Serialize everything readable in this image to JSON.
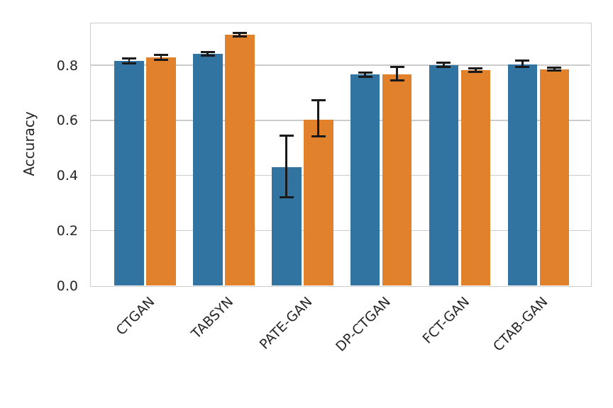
{
  "colors": {
    "background": "#ffffff",
    "grid": "#cccccc",
    "spine": "#cccccc",
    "text": "#262626",
    "errorbar": "#1a1a1a",
    "series_blue": "#3274a1",
    "series_orange": "#e1812c"
  },
  "chart_data": {
    "type": "bar",
    "title": "",
    "xlabel": "",
    "ylabel": "Accuracy",
    "grid": true,
    "legend": null,
    "ylim": [
      0,
      0.952
    ],
    "yticks": [
      0.0,
      0.2,
      0.4,
      0.6,
      0.8
    ],
    "yticklabels": [
      "0.0",
      "0.2",
      "0.4",
      "0.6",
      "0.8"
    ],
    "categories": [
      "CTGAN",
      "TABSYN",
      "PATE-GAN",
      "DP-CTGAN",
      "FCT-GAN",
      "CTAB-GAN"
    ],
    "series": [
      {
        "name": "blue",
        "color": "#3274a1",
        "values": [
          0.815,
          0.841,
          0.43,
          0.766,
          0.801,
          0.803
        ],
        "err_lo": [
          0.806,
          0.835,
          0.32,
          0.759,
          0.793,
          0.793
        ],
        "err_hi": [
          0.825,
          0.848,
          0.545,
          0.774,
          0.81,
          0.816
        ]
      },
      {
        "name": "orange",
        "color": "#e1812c",
        "values": [
          0.828,
          0.91,
          0.602,
          0.767,
          0.783,
          0.785
        ],
        "err_lo": [
          0.819,
          0.904,
          0.542,
          0.745,
          0.777,
          0.78
        ],
        "err_hi": [
          0.838,
          0.916,
          0.672,
          0.795,
          0.789,
          0.791
        ]
      }
    ]
  }
}
